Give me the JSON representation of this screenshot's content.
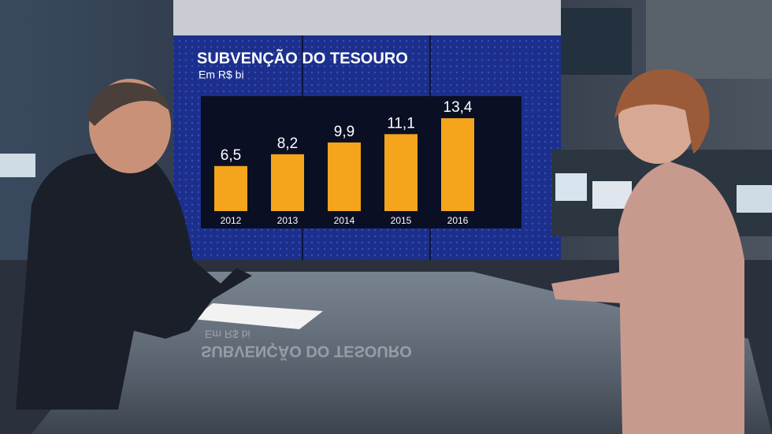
{
  "chart_data": {
    "type": "bar",
    "title": "SUBVENÇÃO DO TESOURO",
    "subtitle": "Em R$ bi",
    "categories": [
      "2012",
      "2013",
      "2014",
      "2015",
      "2016"
    ],
    "values": [
      6.5,
      8.2,
      9.9,
      11.1,
      13.4
    ],
    "value_labels": [
      "6,5",
      "8,2",
      "9,9",
      "11,1",
      "13,4"
    ],
    "color": "#f4a51c"
  }
}
